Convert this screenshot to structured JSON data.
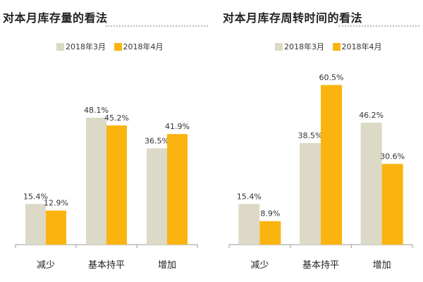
{
  "colors": {
    "series_1": "#dcd9c6",
    "series_2": "#fbb40f",
    "axis": "#9a9a9a"
  },
  "chart_data": [
    {
      "type": "bar",
      "title": "对本月库存量的看法",
      "categories": [
        "减少",
        "基本持平",
        "增加"
      ],
      "series": [
        {
          "name": "2018年3月",
          "values": [
            15.4,
            48.1,
            36.5
          ],
          "labels": [
            "15.4%",
            "48.1%",
            "36.5%"
          ]
        },
        {
          "name": "2018年4月",
          "values": [
            12.9,
            45.2,
            41.9
          ],
          "labels": [
            "12.9%",
            "45.2%",
            "41.9%"
          ]
        }
      ],
      "ylim": [
        0,
        70
      ],
      "grid": false,
      "legend": "top"
    },
    {
      "type": "bar",
      "title": "对本月库存周转时间的看法",
      "categories": [
        "减少",
        "基本持平",
        "增加"
      ],
      "series": [
        {
          "name": "2018年3月",
          "values": [
            15.4,
            38.5,
            46.2
          ],
          "labels": [
            "15.4%",
            "38.5%",
            "46.2%"
          ]
        },
        {
          "name": "2018年4月",
          "values": [
            8.9,
            60.5,
            30.6
          ],
          "labels": [
            "8.9%",
            "60.5%",
            "30.6%"
          ]
        }
      ],
      "ylim": [
        0,
        70
      ],
      "grid": false,
      "legend": "top"
    }
  ]
}
